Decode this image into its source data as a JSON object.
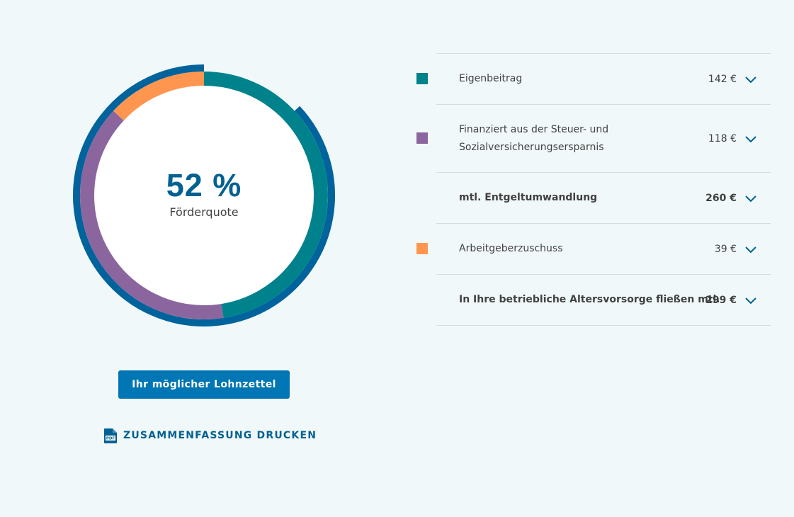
{
  "chart_data": {
    "type": "pie",
    "title": "",
    "center_value": "52 %",
    "center_label": "Förderquote",
    "segments": [
      {
        "name": "Eigenbeitrag",
        "value": 142,
        "color": "#00828c"
      },
      {
        "name": "Finanziert aus der Steuer- und Sozialversicherungsersparnis",
        "value": 118,
        "color": "#8b669e"
      },
      {
        "name": "Arbeitgeberzuschuss",
        "value": 39,
        "color": "#ff964f"
      }
    ],
    "outer_ring": {
      "name": "mtl. Entgeltumwandlung",
      "value": 260,
      "color": "#00639c"
    }
  },
  "breakdown": {
    "rows": [
      {
        "label_lines": [
          "Eigenbeitrag"
        ],
        "value": "142 €",
        "color": "#00828c",
        "bold": false,
        "swatch": true
      },
      {
        "label_lines": [
          "Finanziert aus der Steuer- und",
          "Sozialversicherungsersparnis"
        ],
        "value": "118 €",
        "color": "#8b669e",
        "bold": false,
        "swatch": true
      },
      {
        "label_lines": [
          "mtl. Entgeltumwandlung"
        ],
        "value": "260 €",
        "color": "",
        "bold": true,
        "swatch": false
      },
      {
        "label_lines": [
          "Arbeitgeberzuschuss"
        ],
        "value": "39 €",
        "color": "#ff964f",
        "bold": false,
        "swatch": true
      },
      {
        "label_lines": [
          "In Ihre betriebliche Altersvorsorge fließen mtl."
        ],
        "value": "299 €",
        "color": "",
        "bold": true,
        "swatch": false
      }
    ]
  },
  "actions": {
    "payslip_button": "Ihr möglicher Lohnzettel",
    "print_link": "ZUSAMMENFASSUNG DRUCKEN",
    "pdf_icon_text": "PDF"
  },
  "colors": {
    "background": "#f1f8fa",
    "primary": "#0076b4",
    "dark_blue": "#006192",
    "divider": "#d7dcdf"
  }
}
